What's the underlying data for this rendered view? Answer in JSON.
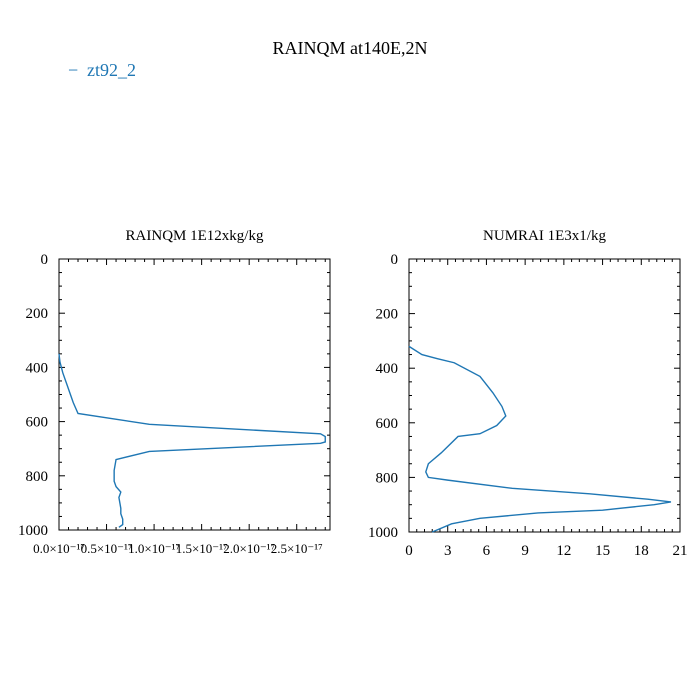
{
  "figure": {
    "title": "RAINQM at140E,2N",
    "legend": [
      {
        "label": "zt92_2",
        "color": "#1f77b4",
        "marker": "−"
      }
    ]
  },
  "chart_data": [
    {
      "type": "line",
      "title": "RAINQM  1E12xkg/kg",
      "xlabel": "",
      "ylabel": "",
      "xlim": [
        0,
        2.85e-17
      ],
      "ylim": [
        1000,
        0
      ],
      "y_inverted": true,
      "xticks": [
        0,
        5e-18,
        1e-17,
        1.5e-17,
        2e-17,
        2.5e-17
      ],
      "xtick_labels": [
        "0.0×10⁻¹⁷",
        "0.5×10⁻¹⁷",
        "1.0×10⁻¹⁷",
        "1.5×10⁻¹⁷",
        "2.0×10⁻¹⁷",
        "2.5×10⁻¹⁷"
      ],
      "yticks": [
        0,
        200,
        400,
        600,
        800,
        1000
      ],
      "ytick_labels": [
        "0",
        "200",
        "400",
        "600",
        "800",
        "1000"
      ],
      "series": [
        {
          "name": "zt92_2",
          "color": "#1f77b4",
          "x": [
            0,
            1e-19,
            4e-19,
            8e-19,
            1.2e-18,
            1.5e-18,
            2e-18,
            9.5e-18,
            2.75e-17,
            2.8e-17,
            2.8e-17,
            2.75e-17,
            9.5e-18,
            6e-18,
            5.8e-18,
            5.8e-18,
            6e-18,
            6.5e-18,
            6.3e-18,
            6.5e-18,
            6.5e-18,
            6.7e-18,
            6.7e-18,
            6.3e-18
          ],
          "y": [
            350,
            380,
            420,
            460,
            500,
            530,
            570,
            610,
            645,
            655,
            675,
            680,
            710,
            740,
            780,
            820,
            840,
            860,
            880,
            920,
            940,
            960,
            980,
            990
          ]
        }
      ]
    },
    {
      "type": "line",
      "title": "NUMRAI  1E3x1/kg",
      "xlabel": "",
      "ylabel": "",
      "xlim": [
        0,
        21
      ],
      "ylim": [
        1000,
        0
      ],
      "y_inverted": true,
      "xticks": [
        0,
        3,
        6,
        9,
        12,
        15,
        18,
        21
      ],
      "xtick_labels": [
        "0",
        "3",
        "6",
        "9",
        "12",
        "15",
        "18",
        "21"
      ],
      "yticks": [
        0,
        200,
        400,
        600,
        800,
        1000
      ],
      "ytick_labels": [
        "0",
        "200",
        "400",
        "600",
        "800",
        "1000"
      ],
      "series": [
        {
          "name": "zt92_2",
          "color": "#1f77b4",
          "x": [
            0,
            1.0,
            2.2,
            3.5,
            5.5,
            6.5,
            7.2,
            7.5,
            6.8,
            5.5,
            3.8,
            2.5,
            1.5,
            1.3,
            1.5,
            3.0,
            8.0,
            14.0,
            18.5,
            20.3,
            19.0,
            15.0,
            10.0,
            5.5,
            3.3,
            1.8
          ],
          "y": [
            320,
            350,
            365,
            380,
            430,
            490,
            540,
            575,
            610,
            640,
            650,
            710,
            750,
            780,
            800,
            810,
            840,
            860,
            880,
            890,
            900,
            920,
            930,
            950,
            970,
            1000
          ]
        }
      ]
    }
  ]
}
